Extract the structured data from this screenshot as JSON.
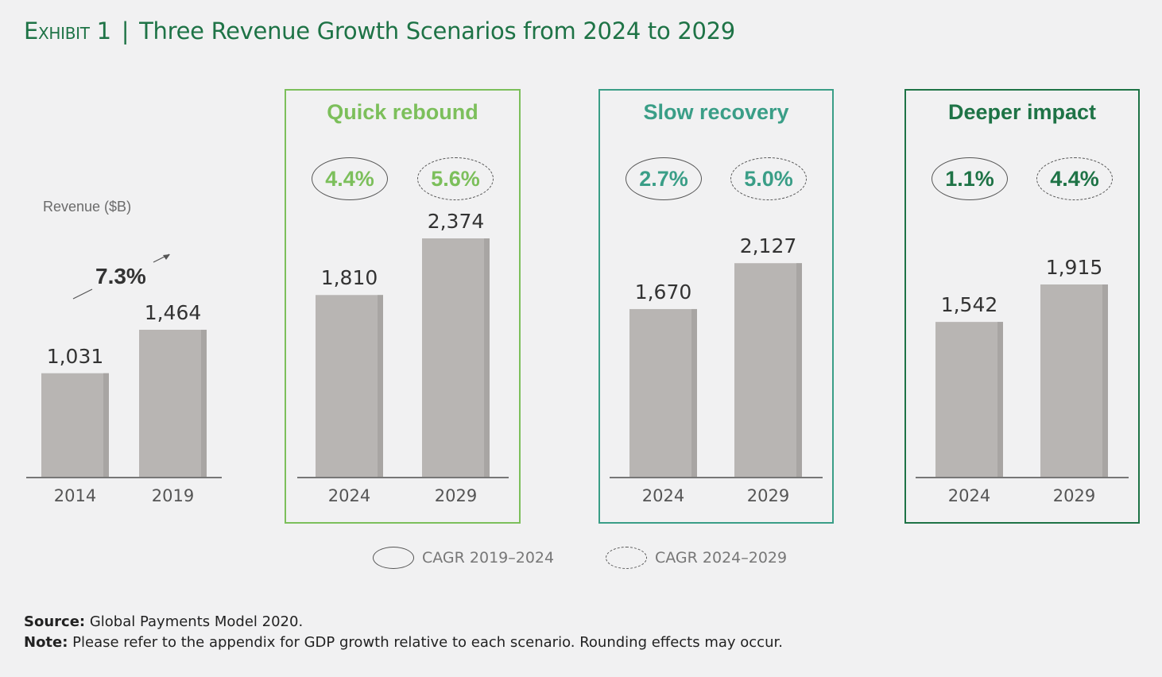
{
  "title": {
    "exhibit": "Exhibit 1",
    "separator": "|",
    "text": "Three Revenue Growth Scenarios from 2024 to 2029"
  },
  "colors": {
    "bar": "#b8b5b3",
    "bar_shadow": "#a8a5a3",
    "quick": "#7cbf5b",
    "slow": "#3a9e87",
    "deeper": "#1e7346",
    "title": "#1e7346"
  },
  "chart_data": [
    {
      "type": "bar",
      "panel": "historical",
      "title": "",
      "ylabel": "Revenue ($B)",
      "categories": [
        "2014",
        "2019"
      ],
      "values": [
        1031,
        1464
      ],
      "value_labels": [
        "1,031",
        "1,464"
      ],
      "annotation": "7.3%"
    },
    {
      "type": "bar",
      "panel": "quick",
      "title": "Quick rebound",
      "categories": [
        "2024",
        "2029"
      ],
      "values": [
        1810,
        2374
      ],
      "value_labels": [
        "1,810",
        "2,374"
      ],
      "cagr_2019_2024": "4.4%",
      "cagr_2024_2029": "5.6%"
    },
    {
      "type": "bar",
      "panel": "slow",
      "title": "Slow recovery",
      "categories": [
        "2024",
        "2029"
      ],
      "values": [
        1670,
        2127
      ],
      "value_labels": [
        "1,670",
        "2,127"
      ],
      "cagr_2019_2024": "2.7%",
      "cagr_2024_2029": "5.0%"
    },
    {
      "type": "bar",
      "panel": "deeper",
      "title": "Deeper impact",
      "categories": [
        "2024",
        "2029"
      ],
      "values": [
        1542,
        1915
      ],
      "value_labels": [
        "1,542",
        "1,915"
      ],
      "cagr_2019_2024": "1.1%",
      "cagr_2024_2029": "4.4%"
    }
  ],
  "legend": {
    "solid": "CAGR 2019–2024",
    "dashed": "CAGR 2024–2029"
  },
  "footer": {
    "source_label": "Source:",
    "source_text": " Global Payments Model 2020.",
    "note_label": "Note:",
    "note_text": " Please refer to the appendix for GDP growth relative to each scenario. Rounding effects may occur."
  }
}
